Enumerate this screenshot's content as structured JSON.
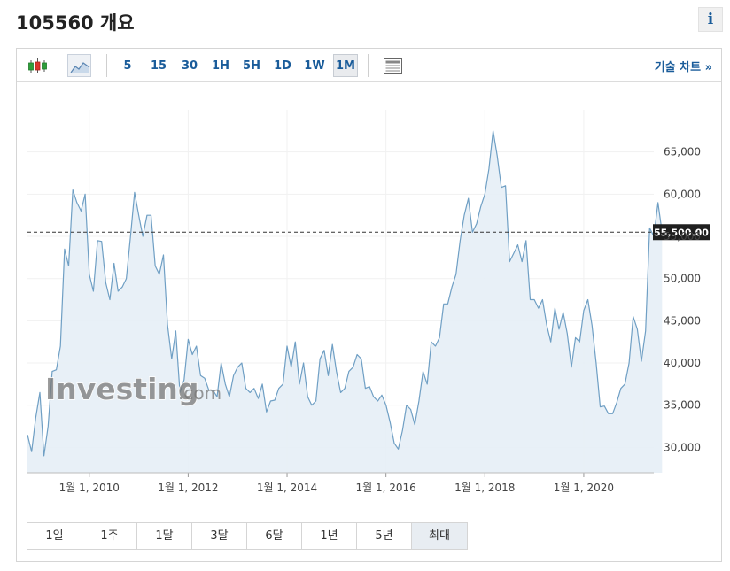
{
  "header": {
    "title": "105560 개요",
    "info_label": "i"
  },
  "toolbar": {
    "chart_type_icons": [
      "candlestick-icon",
      "area-chart-icon"
    ],
    "intervals": [
      "5",
      "15",
      "30",
      "1H",
      "5H",
      "1D",
      "1W",
      "1M"
    ],
    "active_interval": "1M",
    "table_icon": "data-table-icon",
    "tech_chart_label": "기술 차트 »"
  },
  "watermark": {
    "brand": "Investing",
    "suffix": ".com"
  },
  "periods": {
    "items": [
      "1일",
      "1주",
      "1달",
      "3달",
      "6달",
      "1년",
      "5년",
      "최대"
    ],
    "active": "최대"
  },
  "colors": {
    "line": "#6f9fc4",
    "fill": "#e5eef6",
    "current_label_bg": "#1f1f1f",
    "grid": "#f1f1f1"
  },
  "chart_data": {
    "type": "area",
    "x_start": "2008-10",
    "x_step": "1 month",
    "xlim": [
      "2008-10",
      "2021-06"
    ],
    "ylim": [
      27000,
      70000
    ],
    "x_ticks": [
      "1월 1, 2010",
      "1월 1, 2012",
      "1월 1, 2014",
      "1월 1, 2016",
      "1월 1, 2018",
      "1월 1, 2020"
    ],
    "y_ticks": [
      30000,
      35000,
      40000,
      45000,
      50000,
      55000,
      60000,
      65000
    ],
    "y_tick_labels": [
      "30,000",
      "35,000",
      "40,000",
      "45,000",
      "50,000",
      "55,000",
      "60,000",
      "65,000"
    ],
    "current_value": 55500,
    "current_label": "55,500.00",
    "grid": true,
    "values": [
      31500,
      29500,
      33500,
      36500,
      29000,
      32500,
      39000,
      39200,
      42000,
      53500,
      51500,
      60500,
      59000,
      58000,
      60000,
      50500,
      48500,
      54500,
      54400,
      49500,
      47500,
      51800,
      48500,
      49000,
      50000,
      55000,
      60200,
      57500,
      55000,
      57500,
      57500,
      51500,
      50500,
      52800,
      44500,
      40500,
      43800,
      36500,
      38000,
      42800,
      41000,
      42000,
      38500,
      38200,
      36800,
      36800,
      36000,
      40000,
      37500,
      36000,
      38500,
      39500,
      40000,
      37000,
      36500,
      37000,
      35800,
      37500,
      34200,
      35500,
      35600,
      37000,
      37500,
      42000,
      39500,
      42500,
      37500,
      40000,
      36000,
      35000,
      35500,
      40500,
      41500,
      38500,
      42200,
      39000,
      36500,
      37000,
      39000,
      39500,
      41000,
      40500,
      37000,
      37200,
      36000,
      35500,
      36200,
      35000,
      33000,
      30500,
      29800,
      32000,
      35000,
      34500,
      32700,
      35500,
      39000,
      37500,
      42500,
      42000,
      43000,
      47000,
      47000,
      49000,
      50500,
      54500,
      57500,
      59500,
      55500,
      56500,
      58500,
      60000,
      63000,
      67500,
      64500,
      60800,
      61000,
      52000,
      53000,
      54000,
      52000,
      54500,
      47500,
      47500,
      46500,
      47500,
      44500,
      42500,
      46500,
      44000,
      46000,
      43500,
      39500,
      43000,
      42500,
      46200,
      47500,
      44500,
      40000,
      34800,
      34900,
      34000,
      34000,
      35300,
      37000,
      37500,
      40000,
      45500,
      44000,
      40200,
      43800,
      56000,
      55000,
      59000,
      55500
    ]
  }
}
